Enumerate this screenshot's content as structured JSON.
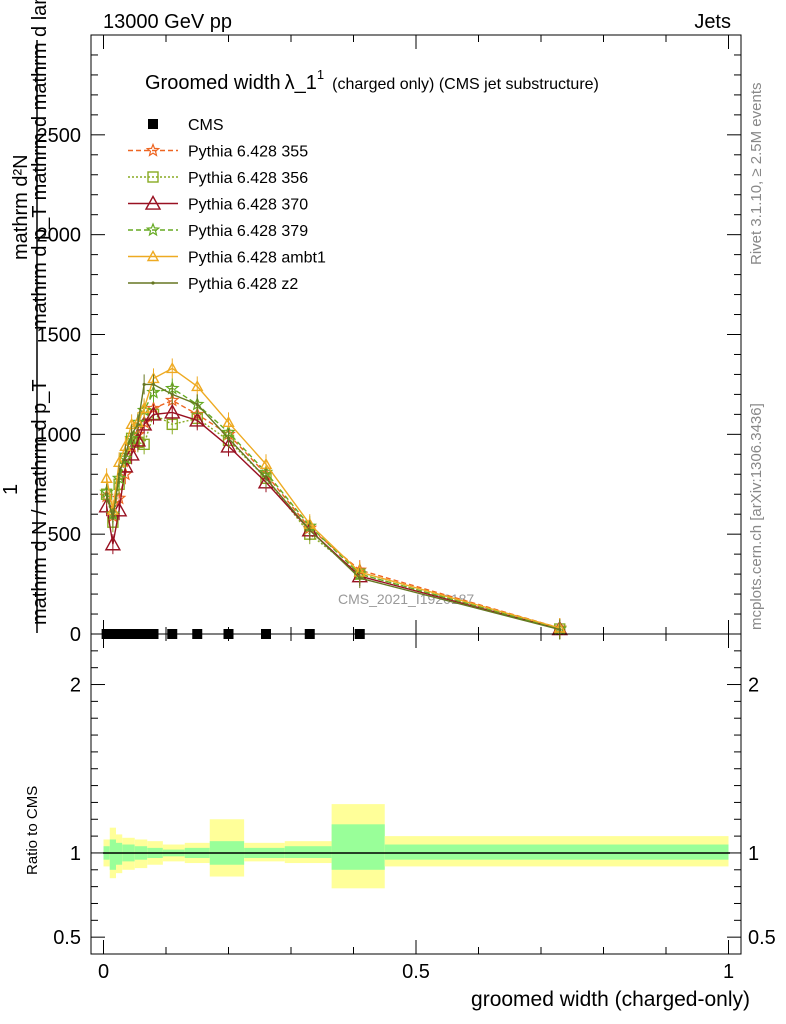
{
  "header": {
    "left": "13000 GeV pp",
    "right": "Jets"
  },
  "side_labels": {
    "rivet": "Rivet 3.1.10, ≥ 2.5M events",
    "mcplots": "mcplots.cern.ch [arXiv:1306.3436]"
  },
  "watermark": "CMS_2021_I1920187",
  "colors": {
    "cms": "#000000",
    "p355": "#ee6622",
    "p356": "#88aa22",
    "p370": "#991122",
    "p379": "#66aa22",
    "ambt1": "#eeaa22",
    "z2": "#667722",
    "band_inner": "#99ff99",
    "band_outer": "#ffff99"
  },
  "chart_data": [
    {
      "id": "main",
      "type": "line",
      "title": "Groomed width λ_1¹ (charged only) (CMS jet substructure)",
      "title_main": "Groomed width",
      "title_lambda": "λ_1",
      "title_sup": "1",
      "title_sub": "(charged only) (CMS jet substructure)",
      "ylabel_top": "mathrm d²N",
      "ylabel_mid": "mathrm d p_T mathrm d mathrm d lambda",
      "ylabel_one": "1",
      "ylabel_bottom": "mathrm d N / mathrm d p_T",
      "ylim": [
        0,
        3000
      ],
      "xlim": [
        -0.02,
        1.02
      ],
      "y_ticks": [
        "0",
        "500",
        "1000",
        "1500",
        "2000",
        "2500"
      ],
      "legend_position": "top-left",
      "legend": [
        {
          "key": "cms",
          "label": "CMS"
        },
        {
          "key": "p355",
          "label": "Pythia 6.428 355"
        },
        {
          "key": "p356",
          "label": "Pythia 6.428 356"
        },
        {
          "key": "p370",
          "label": "Pythia 6.428 370"
        },
        {
          "key": "p379",
          "label": "Pythia 6.428 379"
        },
        {
          "key": "ambt1",
          "label": "Pythia 6.428 ambt1"
        },
        {
          "key": "z2",
          "label": "Pythia 6.428 z2"
        }
      ],
      "cms_points": {
        "x": [
          0.005,
          0.015,
          0.025,
          0.035,
          0.045,
          0.055,
          0.065,
          0.08,
          0.11,
          0.15,
          0.2,
          0.26,
          0.33,
          0.41
        ],
        "y": [
          0,
          0,
          0,
          0,
          0,
          0,
          0,
          0,
          0,
          0,
          0,
          0,
          0,
          0
        ]
      },
      "series": [
        {
          "key": "p355",
          "name": "Pythia 6.428 355",
          "marker": "star",
          "dash": "5,3",
          "x": [
            0.005,
            0.015,
            0.025,
            0.035,
            0.045,
            0.055,
            0.065,
            0.08,
            0.11,
            0.15,
            0.2,
            0.26,
            0.33,
            0.41,
            0.73
          ],
          "y": [
            690,
            590,
            680,
            800,
            940,
            1000,
            1060,
            1130,
            1170,
            1100,
            1000,
            800,
            530,
            320,
            30
          ]
        },
        {
          "key": "p356",
          "name": "Pythia 6.428 356",
          "marker": "square",
          "dash": "2,2",
          "x": [
            0.005,
            0.015,
            0.025,
            0.035,
            0.045,
            0.055,
            0.065,
            0.08,
            0.11,
            0.15,
            0.2,
            0.26,
            0.33,
            0.41,
            0.73
          ],
          "y": [
            700,
            560,
            750,
            880,
            980,
            960,
            950,
            1100,
            1050,
            1080,
            970,
            780,
            500,
            300,
            25
          ]
        },
        {
          "key": "p370",
          "name": "Pythia 6.428 370",
          "marker": "triangle",
          "dash": "",
          "x": [
            0.005,
            0.015,
            0.025,
            0.035,
            0.045,
            0.055,
            0.065,
            0.08,
            0.11,
            0.15,
            0.2,
            0.26,
            0.33,
            0.41,
            0.73
          ],
          "y": [
            640,
            450,
            620,
            840,
            900,
            970,
            1050,
            1100,
            1110,
            1070,
            940,
            760,
            520,
            290,
            25
          ]
        },
        {
          "key": "p379",
          "name": "Pythia 6.428 379",
          "marker": "star",
          "dash": "5,3",
          "x": [
            0.005,
            0.015,
            0.025,
            0.035,
            0.045,
            0.055,
            0.065,
            0.08,
            0.11,
            0.15,
            0.2,
            0.26,
            0.33,
            0.41,
            0.73
          ],
          "y": [
            710,
            600,
            780,
            880,
            980,
            1060,
            1120,
            1210,
            1230,
            1150,
            1010,
            810,
            540,
            300,
            25
          ]
        },
        {
          "key": "ambt1",
          "name": "Pythia 6.428 ambt1",
          "marker": "triangle-small",
          "dash": "",
          "x": [
            0.005,
            0.015,
            0.025,
            0.035,
            0.045,
            0.055,
            0.065,
            0.08,
            0.11,
            0.15,
            0.2,
            0.26,
            0.33,
            0.41,
            0.73
          ],
          "y": [
            780,
            620,
            860,
            940,
            1050,
            1060,
            1130,
            1280,
            1330,
            1240,
            1060,
            850,
            550,
            310,
            30
          ]
        },
        {
          "key": "z2",
          "name": "Pythia 6.428 z2",
          "marker": "dot",
          "dash": "",
          "x": [
            0.005,
            0.015,
            0.025,
            0.035,
            0.045,
            0.055,
            0.065,
            0.08,
            0.11,
            0.15,
            0.2,
            0.26,
            0.33,
            0.41,
            0.73
          ],
          "y": [
            700,
            580,
            800,
            900,
            1000,
            1050,
            1250,
            1250,
            1200,
            1150,
            980,
            780,
            520,
            280,
            22
          ]
        }
      ]
    },
    {
      "id": "ratio",
      "type": "area",
      "ylabel": "Ratio to CMS",
      "xlabel": "groomed width (charged-only)",
      "ylim": [
        0.4,
        2.3
      ],
      "xlim": [
        -0.02,
        1.02
      ],
      "x_ticks": [
        "0",
        "0.5",
        "1"
      ],
      "y_ticks": [
        "0.5",
        "1",
        "2"
      ],
      "reference": 1.0,
      "bins": [
        {
          "x0": 0.0,
          "x1": 0.01,
          "inner": [
            0.96,
            1.04
          ],
          "outer": [
            0.92,
            1.08
          ]
        },
        {
          "x0": 0.01,
          "x1": 0.02,
          "inner": [
            0.9,
            1.08
          ],
          "outer": [
            0.85,
            1.15
          ]
        },
        {
          "x0": 0.02,
          "x1": 0.03,
          "inner": [
            0.93,
            1.06
          ],
          "outer": [
            0.88,
            1.11
          ]
        },
        {
          "x0": 0.03,
          "x1": 0.05,
          "inner": [
            0.95,
            1.05
          ],
          "outer": [
            0.9,
            1.09
          ]
        },
        {
          "x0": 0.05,
          "x1": 0.07,
          "inner": [
            0.96,
            1.04
          ],
          "outer": [
            0.91,
            1.08
          ]
        },
        {
          "x0": 0.07,
          "x1": 0.095,
          "inner": [
            0.97,
            1.03
          ],
          "outer": [
            0.93,
            1.07
          ]
        },
        {
          "x0": 0.095,
          "x1": 0.13,
          "inner": [
            0.98,
            1.02
          ],
          "outer": [
            0.95,
            1.05
          ]
        },
        {
          "x0": 0.13,
          "x1": 0.17,
          "inner": [
            0.97,
            1.03
          ],
          "outer": [
            0.94,
            1.06
          ]
        },
        {
          "x0": 0.17,
          "x1": 0.225,
          "inner": [
            0.93,
            1.07
          ],
          "outer": [
            0.86,
            1.2
          ]
        },
        {
          "x0": 0.225,
          "x1": 0.29,
          "inner": [
            0.97,
            1.03
          ],
          "outer": [
            0.95,
            1.06
          ]
        },
        {
          "x0": 0.29,
          "x1": 0.365,
          "inner": [
            0.97,
            1.04
          ],
          "outer": [
            0.94,
            1.07
          ]
        },
        {
          "x0": 0.365,
          "x1": 0.45,
          "inner": [
            0.9,
            1.17
          ],
          "outer": [
            0.79,
            1.29
          ]
        },
        {
          "x0": 0.45,
          "x1": 1.0,
          "inner": [
            0.96,
            1.05
          ],
          "outer": [
            0.92,
            1.1
          ]
        }
      ]
    }
  ]
}
